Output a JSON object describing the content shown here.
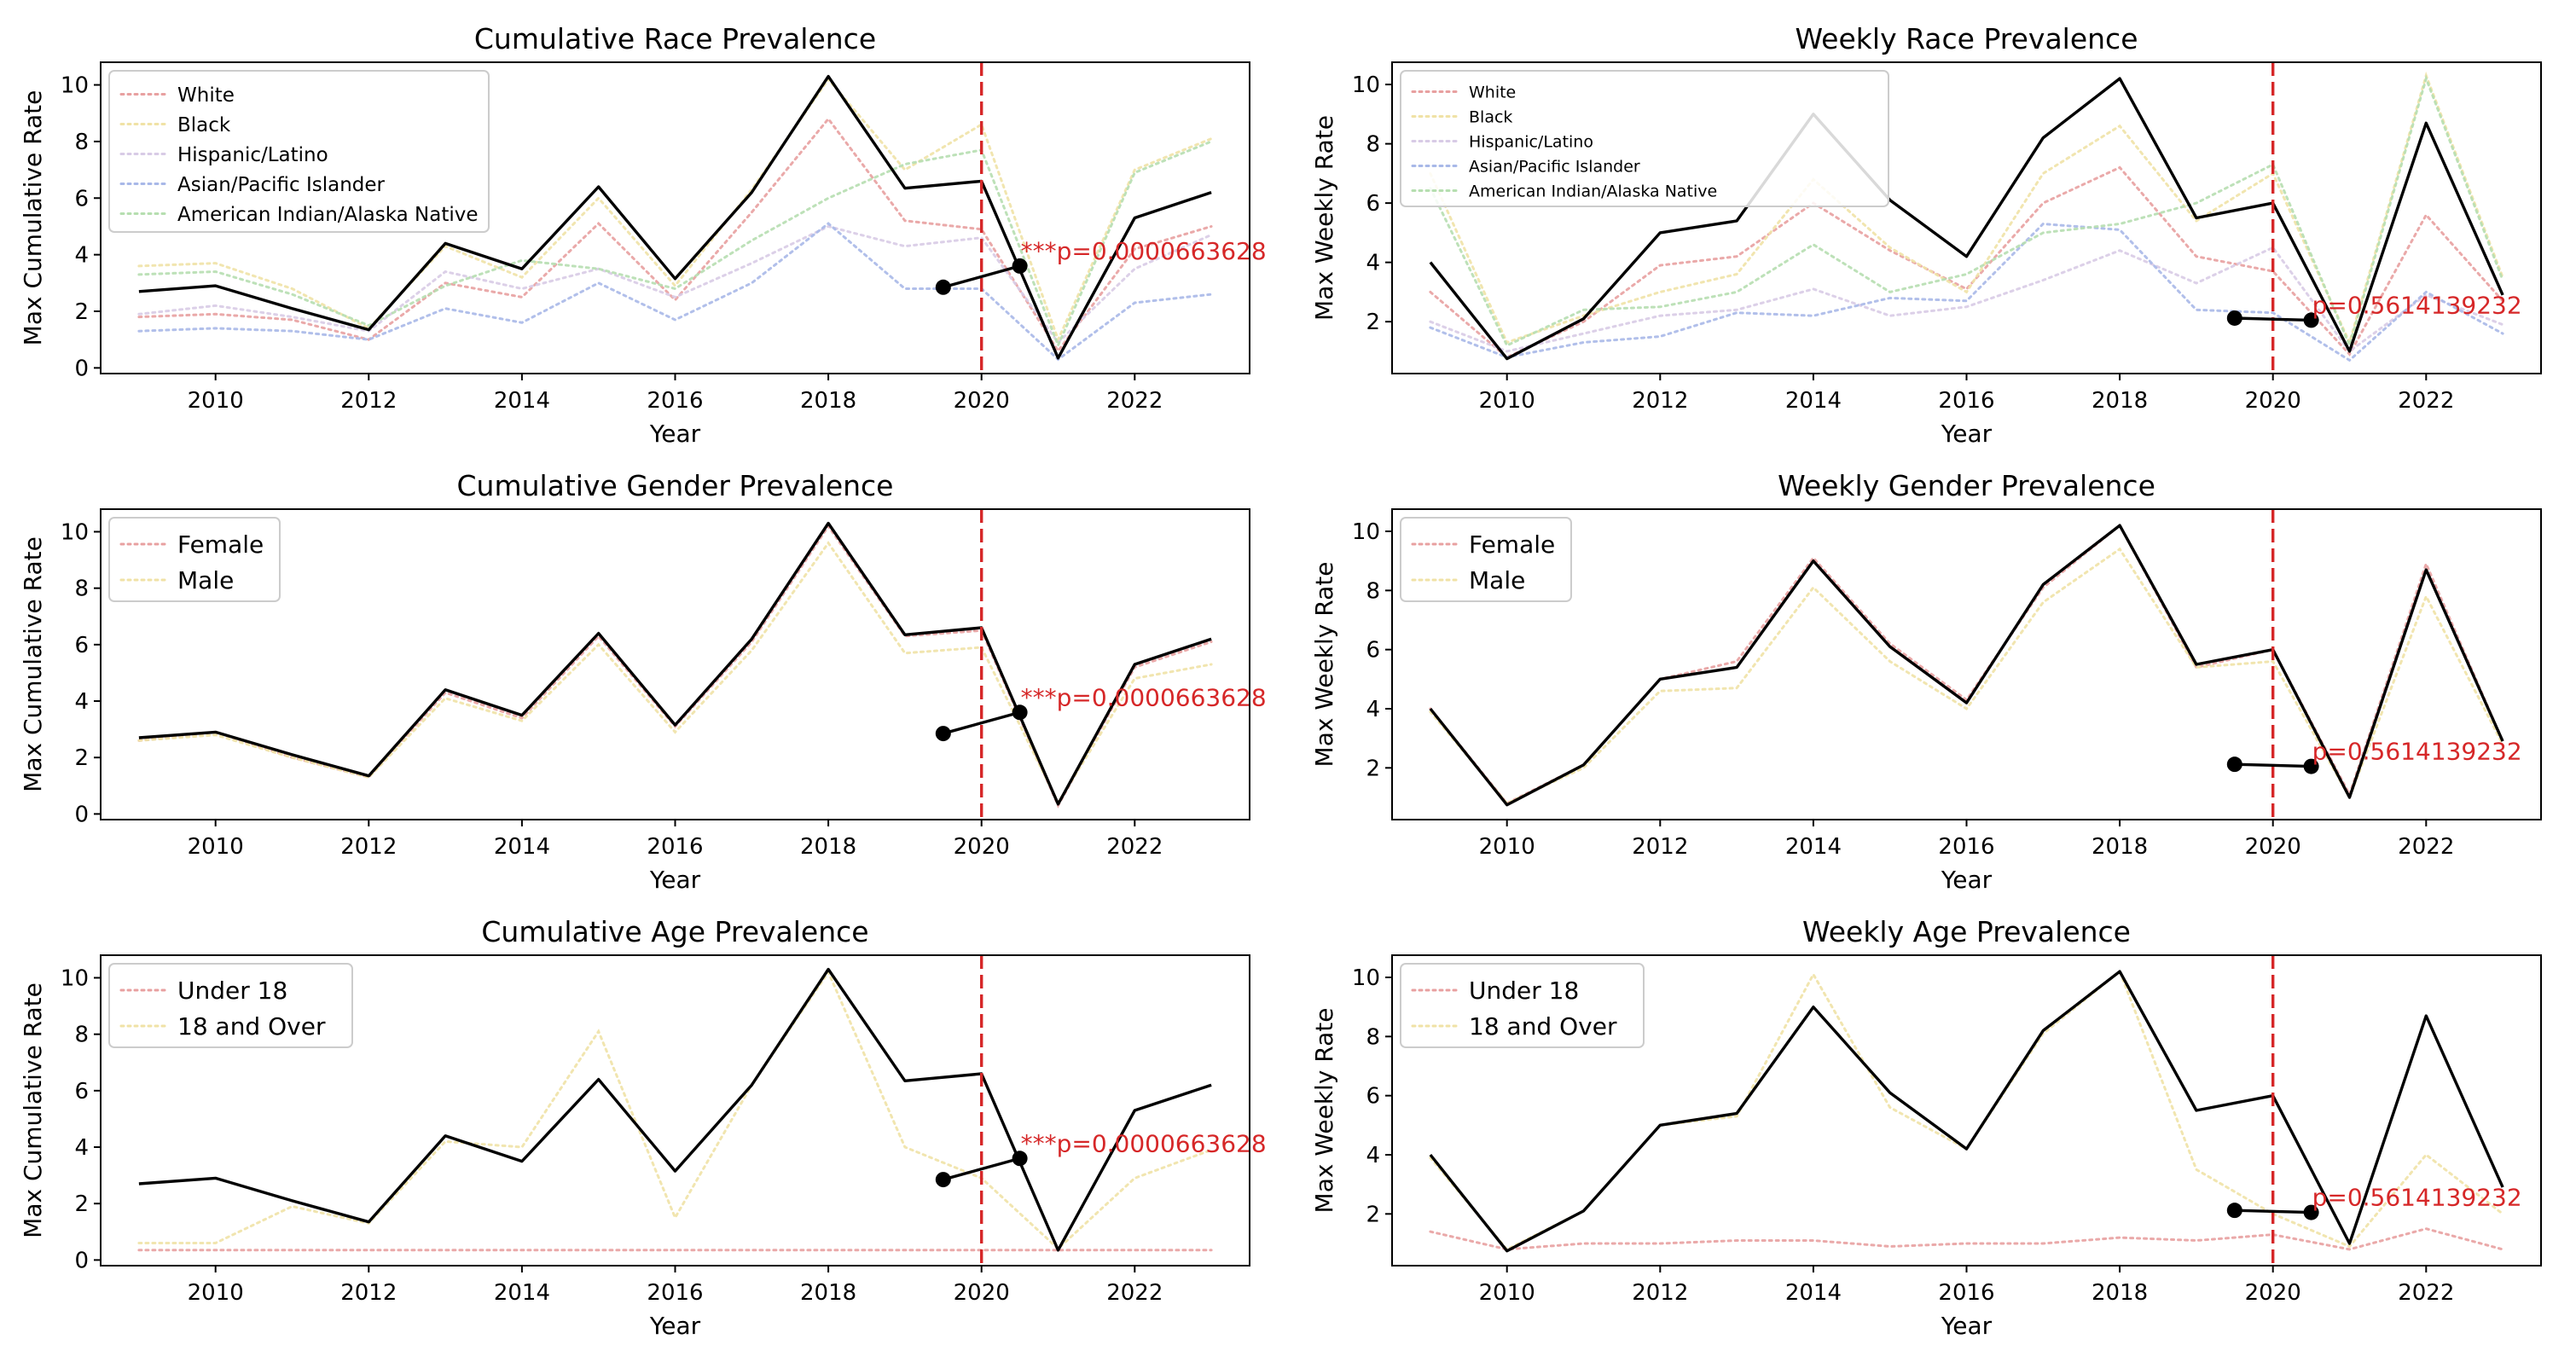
{
  "colors": {
    "overall": "#000000",
    "cutoff": "#d62728",
    "annotation": "#d62728"
  },
  "chart_data": [
    {
      "type": "line",
      "title": "Cumulative Race Prevalence",
      "xlabel": "Year",
      "ylabel": "Max Cumulative Rate",
      "xlim": [
        2008.5,
        2023.5
      ],
      "ylim": [
        -0.2,
        10.8
      ],
      "xticks": [
        2010,
        2012,
        2014,
        2016,
        2018,
        2020,
        2022
      ],
      "yticks": [
        0,
        2,
        4,
        6,
        8,
        10
      ],
      "legend_position": "upper-left",
      "cutoff_x": 2020,
      "x": [
        2009,
        2010,
        2011,
        2012,
        2013,
        2014,
        2015,
        2016,
        2017,
        2018,
        2019,
        2020,
        2021,
        2022,
        2023
      ],
      "overall": [
        2.7,
        2.9,
        2.1,
        1.35,
        4.4,
        3.5,
        6.4,
        3.15,
        6.2,
        10.3,
        6.35,
        6.6,
        0.35,
        5.3,
        6.2
      ],
      "series": [
        {
          "name": "White",
          "color": "#e8a0a0",
          "values": [
            1.8,
            1.9,
            1.7,
            1.0,
            3.0,
            2.5,
            5.1,
            2.4,
            5.5,
            8.8,
            5.2,
            4.9,
            0.6,
            4.2,
            5.0
          ]
        },
        {
          "name": "Black",
          "color": "#f0e2a6",
          "values": [
            3.6,
            3.7,
            2.8,
            1.4,
            4.3,
            3.2,
            6.0,
            2.9,
            6.3,
            10.2,
            7.0,
            8.6,
            1.0,
            7.0,
            8.1
          ]
        },
        {
          "name": "Hispanic/Latino",
          "color": "#d8cbe6",
          "values": [
            1.9,
            2.2,
            1.8,
            1.3,
            3.4,
            2.8,
            3.5,
            2.5,
            3.7,
            5.0,
            4.3,
            4.6,
            0.9,
            3.5,
            4.7
          ]
        },
        {
          "name": "Asian/Pacific Islander",
          "color": "#a8b8e8",
          "values": [
            1.3,
            1.4,
            1.3,
            1.0,
            2.1,
            1.6,
            3.0,
            1.7,
            3.0,
            5.1,
            2.8,
            2.8,
            0.3,
            2.3,
            2.6
          ]
        },
        {
          "name": "American Indian/Alaska Native",
          "color": "#b6deb0",
          "values": [
            3.3,
            3.4,
            2.6,
            1.5,
            2.9,
            3.8,
            3.5,
            2.8,
            4.5,
            6.0,
            7.2,
            7.7,
            0.8,
            6.9,
            8.0
          ]
        }
      ],
      "dumbbell": {
        "x": [
          2019.5,
          2020.5
        ],
        "y": [
          2.85,
          3.6
        ]
      },
      "annotation": "***p=0.0000663628"
    },
    {
      "type": "line",
      "title": "Weekly Race Prevalence",
      "xlabel": "Year",
      "ylabel": "Max Weekly Rate",
      "xlim": [
        2008.5,
        2023.5
      ],
      "ylim": [
        0.25,
        10.75
      ],
      "xticks": [
        2010,
        2012,
        2014,
        2016,
        2018,
        2020,
        2022
      ],
      "yticks": [
        2,
        4,
        6,
        8,
        10
      ],
      "legend_position": "upper-left",
      "cutoff_x": 2020,
      "x": [
        2009,
        2010,
        2011,
        2012,
        2013,
        2014,
        2015,
        2016,
        2017,
        2018,
        2019,
        2020,
        2021,
        2022,
        2023
      ],
      "overall": [
        4.0,
        0.75,
        2.1,
        5.0,
        5.4,
        9.0,
        6.1,
        4.2,
        8.2,
        10.2,
        5.5,
        6.0,
        1.0,
        8.7,
        2.9
      ],
      "series": [
        {
          "name": "White",
          "color": "#e8a0a0",
          "values": [
            3.0,
            0.8,
            2.0,
            3.9,
            4.2,
            6.0,
            4.4,
            3.1,
            6.0,
            7.2,
            4.2,
            3.7,
            0.9,
            5.6,
            2.7
          ]
        },
        {
          "name": "Black",
          "color": "#f0e2a6",
          "values": [
            7.0,
            1.3,
            2.2,
            3.0,
            3.6,
            6.8,
            4.5,
            3.0,
            7.0,
            8.6,
            5.4,
            7.0,
            1.3,
            10.3,
            3.5
          ]
        },
        {
          "name": "Hispanic/Latino",
          "color": "#d8cbe6",
          "values": [
            2.0,
            1.0,
            1.6,
            2.2,
            2.4,
            3.1,
            2.2,
            2.5,
            3.4,
            4.4,
            3.3,
            4.5,
            1.0,
            2.9,
            1.9
          ]
        },
        {
          "name": "Asian/Pacific Islander",
          "color": "#a8b8e8",
          "values": [
            1.8,
            0.8,
            1.3,
            1.5,
            2.3,
            2.2,
            2.8,
            2.7,
            5.3,
            5.1,
            2.4,
            2.3,
            0.7,
            3.0,
            1.6
          ]
        },
        {
          "name": "American Indian/Alaska Native",
          "color": "#b6deb0",
          "values": [
            6.5,
            1.2,
            2.4,
            2.5,
            3.0,
            4.6,
            3.0,
            3.6,
            5.0,
            5.3,
            6.0,
            7.3,
            1.2,
            10.2,
            3.4
          ]
        }
      ],
      "dumbbell": {
        "x": [
          2019.5,
          2020.5
        ],
        "y": [
          2.12,
          2.05
        ]
      },
      "annotation": "p=0.5614139232"
    },
    {
      "type": "line",
      "title": "Cumulative Gender Prevalence",
      "xlabel": "Year",
      "ylabel": "Max Cumulative Rate",
      "xlim": [
        2008.5,
        2023.5
      ],
      "ylim": [
        -0.2,
        10.8
      ],
      "xticks": [
        2010,
        2012,
        2014,
        2016,
        2018,
        2020,
        2022
      ],
      "yticks": [
        0,
        2,
        4,
        6,
        8,
        10
      ],
      "legend_position": "upper-left",
      "cutoff_x": 2020,
      "x": [
        2009,
        2010,
        2011,
        2012,
        2013,
        2014,
        2015,
        2016,
        2017,
        2018,
        2019,
        2020,
        2021,
        2022,
        2023
      ],
      "overall": [
        2.7,
        2.9,
        2.1,
        1.35,
        4.4,
        3.5,
        6.4,
        3.15,
        6.2,
        10.3,
        6.35,
        6.6,
        0.35,
        5.3,
        6.2
      ],
      "series": [
        {
          "name": "Female",
          "color": "#e8a0a0",
          "values": [
            2.6,
            2.9,
            2.0,
            1.3,
            4.3,
            3.4,
            6.3,
            3.1,
            6.1,
            10.2,
            6.3,
            6.5,
            0.3,
            5.2,
            6.1
          ]
        },
        {
          "name": "Male",
          "color": "#f0e2a6",
          "values": [
            2.6,
            2.8,
            2.0,
            1.3,
            4.1,
            3.3,
            6.0,
            2.9,
            5.8,
            9.6,
            5.7,
            5.9,
            0.4,
            4.8,
            5.3
          ]
        }
      ],
      "dumbbell": {
        "x": [
          2019.5,
          2020.5
        ],
        "y": [
          2.85,
          3.6
        ]
      },
      "annotation": "***p=0.0000663628"
    },
    {
      "type": "line",
      "title": "Weekly Gender Prevalence",
      "xlabel": "Year",
      "ylabel": "Max Weekly Rate",
      "xlim": [
        2008.5,
        2023.5
      ],
      "ylim": [
        0.25,
        10.75
      ],
      "xticks": [
        2010,
        2012,
        2014,
        2016,
        2018,
        2020,
        2022
      ],
      "yticks": [
        2,
        4,
        6,
        8,
        10
      ],
      "legend_position": "upper-left",
      "cutoff_x": 2020,
      "x": [
        2009,
        2010,
        2011,
        2012,
        2013,
        2014,
        2015,
        2016,
        2017,
        2018,
        2019,
        2020,
        2021,
        2022,
        2023
      ],
      "overall": [
        4.0,
        0.75,
        2.1,
        5.0,
        5.4,
        9.0,
        6.1,
        4.2,
        8.2,
        10.2,
        5.5,
        6.0,
        1.0,
        8.7,
        2.9
      ],
      "series": [
        {
          "name": "Female",
          "color": "#e8a0a0",
          "values": [
            4.0,
            0.8,
            2.1,
            5.0,
            5.6,
            9.1,
            6.2,
            4.3,
            8.1,
            10.2,
            5.4,
            6.0,
            1.1,
            8.9,
            2.9
          ]
        },
        {
          "name": "Male",
          "color": "#f0e2a6",
          "values": [
            3.9,
            0.8,
            2.0,
            4.6,
            4.7,
            8.1,
            5.6,
            4.0,
            7.6,
            9.4,
            5.4,
            5.6,
            1.0,
            7.8,
            2.8
          ]
        }
      ],
      "dumbbell": {
        "x": [
          2019.5,
          2020.5
        ],
        "y": [
          2.12,
          2.05
        ]
      },
      "annotation": "p=0.5614139232"
    },
    {
      "type": "line",
      "title": "Cumulative Age Prevalence",
      "xlabel": "Year",
      "ylabel": "Max Cumulative Rate",
      "xlim": [
        2008.5,
        2023.5
      ],
      "ylim": [
        -0.2,
        10.8
      ],
      "xticks": [
        2010,
        2012,
        2014,
        2016,
        2018,
        2020,
        2022
      ],
      "yticks": [
        0,
        2,
        4,
        6,
        8,
        10
      ],
      "legend_position": "upper-left",
      "cutoff_x": 2020,
      "x": [
        2009,
        2010,
        2011,
        2012,
        2013,
        2014,
        2015,
        2016,
        2017,
        2018,
        2019,
        2020,
        2021,
        2022,
        2023
      ],
      "overall": [
        2.7,
        2.9,
        2.1,
        1.35,
        4.4,
        3.5,
        6.4,
        3.15,
        6.2,
        10.3,
        6.35,
        6.6,
        0.35,
        5.3,
        6.2
      ],
      "series": [
        {
          "name": "Under 18",
          "color": "#e8a0a0",
          "values": [
            0.35,
            0.35,
            0.35,
            0.35,
            0.35,
            0.35,
            0.35,
            0.35,
            0.35,
            0.35,
            0.35,
            0.35,
            0.35,
            0.35,
            0.35
          ]
        },
        {
          "name": "18 and Over",
          "color": "#f0e2a6",
          "values": [
            0.6,
            0.6,
            1.9,
            1.3,
            4.2,
            4.0,
            8.1,
            1.5,
            6.2,
            10.2,
            4.0,
            2.9,
            0.4,
            2.9,
            3.9
          ]
        }
      ],
      "dumbbell": {
        "x": [
          2019.5,
          2020.5
        ],
        "y": [
          2.85,
          3.6
        ]
      },
      "annotation": "***p=0.0000663628"
    },
    {
      "type": "line",
      "title": "Weekly Age Prevalence",
      "xlabel": "Year",
      "ylabel": "Max Weekly Rate",
      "xlim": [
        2008.5,
        2023.5
      ],
      "ylim": [
        0.25,
        10.75
      ],
      "xticks": [
        2010,
        2012,
        2014,
        2016,
        2018,
        2020,
        2022
      ],
      "yticks": [
        2,
        4,
        6,
        8,
        10
      ],
      "legend_position": "upper-left",
      "cutoff_x": 2020,
      "x": [
        2009,
        2010,
        2011,
        2012,
        2013,
        2014,
        2015,
        2016,
        2017,
        2018,
        2019,
        2020,
        2021,
        2022,
        2023
      ],
      "overall": [
        4.0,
        0.75,
        2.1,
        5.0,
        5.4,
        9.0,
        6.1,
        4.2,
        8.2,
        10.2,
        5.5,
        6.0,
        1.0,
        8.7,
        2.9
      ],
      "series": [
        {
          "name": "Under 18",
          "color": "#e8a0a0",
          "values": [
            1.4,
            0.8,
            1.0,
            1.0,
            1.1,
            1.1,
            0.9,
            1.0,
            1.0,
            1.2,
            1.1,
            1.3,
            0.8,
            1.5,
            0.8
          ]
        },
        {
          "name": "18 and Over",
          "color": "#f0e2a6",
          "values": [
            3.9,
            0.8,
            2.1,
            5.0,
            5.3,
            10.1,
            5.6,
            4.2,
            8.1,
            10.2,
            3.5,
            2.0,
            0.9,
            4.0,
            2.0
          ]
        }
      ],
      "dumbbell": {
        "x": [
          2019.5,
          2020.5
        ],
        "y": [
          2.12,
          2.05
        ]
      },
      "annotation": "p=0.5614139232"
    }
  ]
}
